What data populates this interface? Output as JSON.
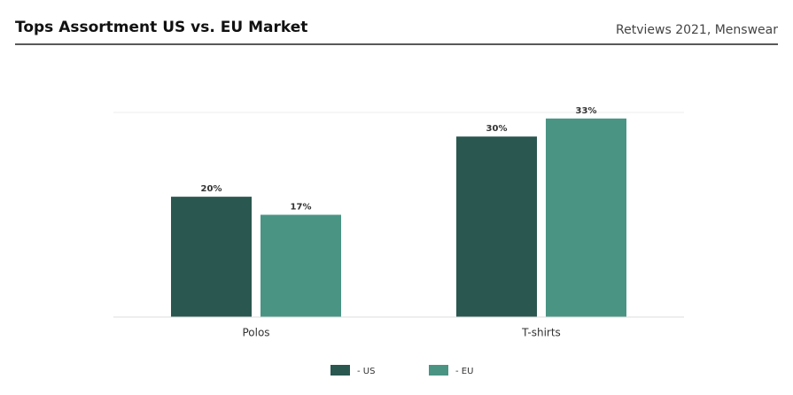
{
  "chart_data": {
    "type": "bar",
    "title": "Tops Assortment US vs. EU Market",
    "subtitle": "Retviews 2021, Menswear",
    "categories": [
      "Polos",
      "T-shirts"
    ],
    "series": [
      {
        "name": "- US",
        "color": "#2a5750",
        "values": [
          20,
          30
        ],
        "value_labels": [
          "20%",
          "30%"
        ]
      },
      {
        "name": "- EU",
        "color": "#4a9484",
        "values": [
          17,
          33
        ],
        "value_labels": [
          "17%",
          "33%"
        ]
      }
    ],
    "ylim": [
      0,
      34
    ]
  }
}
